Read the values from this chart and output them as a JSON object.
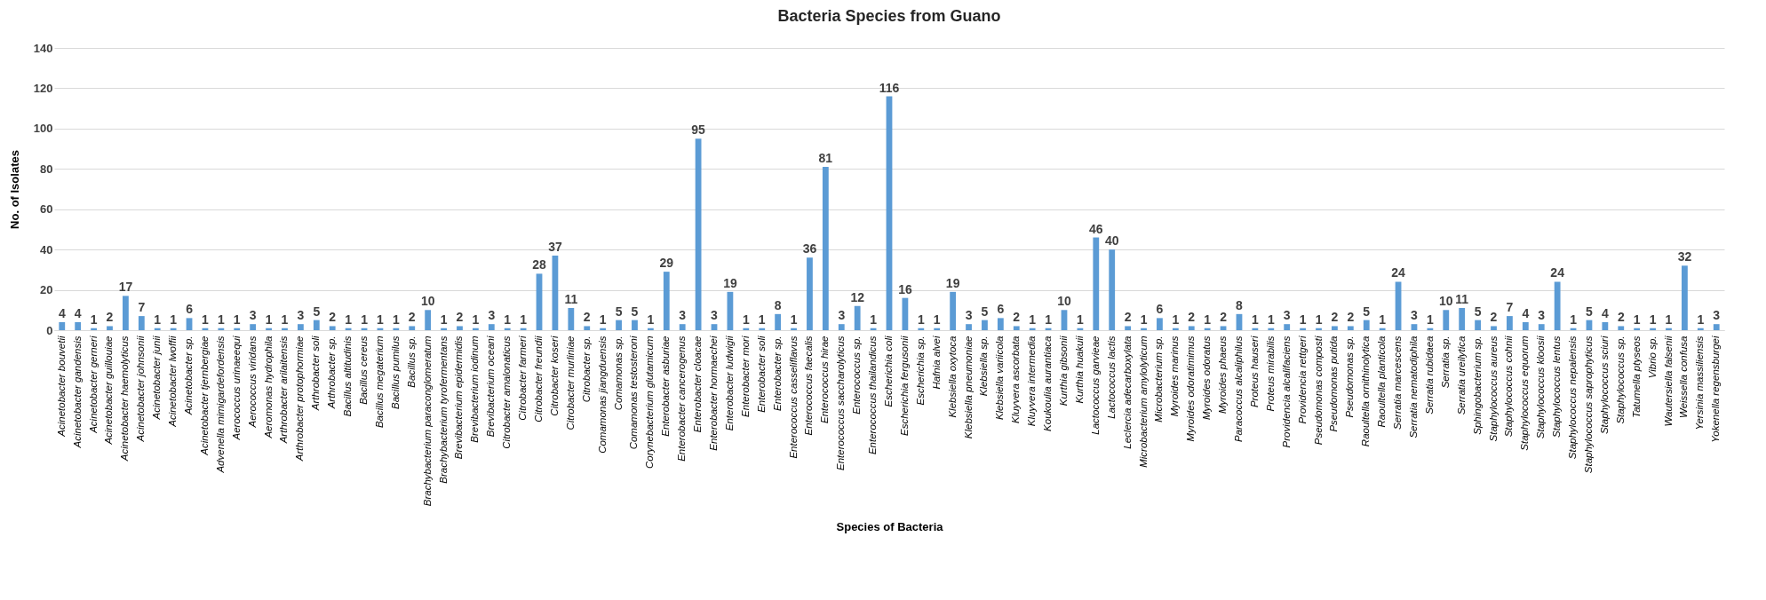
{
  "chart_data": {
    "type": "bar",
    "title": "Bacteria Species from Guano",
    "xlabel": "Species of Bacteria",
    "ylabel": "No. of Isolates",
    "categories": [
      "Acinetobacter bouvetii",
      "Acinetobacter gandensis",
      "Acinetobacter gerneri",
      "Acinetobacter guillouiae",
      "Acinetobacter haemolyticus",
      "Acinetobacter johnsonii",
      "Acinetobacter junii",
      "Acinetobacter lwoffii",
      "Acinetobacter sp.",
      "Acinetobacter tjernbergiae",
      "Advenella mimigardefordensis",
      "Aerococcus urinaeequi",
      "Aerococcus viridans",
      "Aeromonas hydrophila",
      "Arthrobacter arilaitensis",
      "Arthrobacter protophormiae",
      "Arthrobacter soli",
      "Arthrobacter sp.",
      "Bacillus altitudinis",
      "Bacillus cereus",
      "Bacillus megaterium",
      "Bacillus pumilus",
      "Bacillus sp.",
      "Brachybacterium paraconglomeratum",
      "Brachybacterium tyrofermentans",
      "Brevibacterium epidermidis",
      "Brevibacterium iodinum",
      "Brevibacterium oceani",
      "Citrobacter amalonaticus",
      "Citrobacter farmeri",
      "Citrobacter freundii",
      "Citrobacter koseri",
      "Citrobacter murliniae",
      "Citrobacter sp.",
      "Comamonas jiangduensis",
      "Comamonas sp.",
      "Comamonas testosteroni",
      "Corynebacterium glutamicum",
      "Enterobacter asburiae",
      "Enterobacter cancerogenus",
      "Enterobacter cloacae",
      "Enterobacter hormaechei",
      "Enterobacter ludwigii",
      "Enterobacter mori",
      "Enterobacter soli",
      "Enterobacter sp.",
      "Enterococcus casseliflavus",
      "Enterococcus faecalis",
      "Enterococcus hirae",
      "Enterococcus saccharolyticus",
      "Enterococcus sp.",
      "Enterococcus thailandicus",
      "Escherichia coli",
      "Escherichia fergusonii",
      "Escherichia sp.",
      "Hafnia alvei",
      "Klebsiella oxytoca",
      "Klebsiella pneumoniae",
      "Klebsiella sp.",
      "Klebsiella variicola",
      "Kluyvera ascorbata",
      "Kluyvera intermedia",
      "Koukoulia aurantiaca",
      "Kurthia gibsonii",
      "Kurthia huakuii",
      "Lactococcus garvieae",
      "Lactococcus lactis",
      "Leclercia adecarboxylata",
      "Microbacterium amylolyticum",
      "Microbacterium sp.",
      "Myroides marinus",
      "Myroides odoratimimus",
      "Myroides odoratus",
      "Myroides phaeus",
      "Paracoccus alcaliphilus",
      "Proteus hauseri",
      "Proteus mirabilis",
      "Providencia alcalifaciens",
      "Providencia rettgeri",
      "Pseudomonas composti",
      "Pseudomonas putida",
      "Pseudomonas sp.",
      "Raoultella ornithinolytica",
      "Raoultella planticola",
      "Serratia marcescens",
      "Serratia nematodiphila",
      "Serratia rubidaea",
      "Serratia sp.",
      "Serratia ureilytica",
      "Sphingobacterium sp.",
      "Staphylococcus aureus",
      "Staphylococcus cohnii",
      "Staphylococcus equorum",
      "Staphylococcus kloosii",
      "Staphylococcus lentus",
      "Staphylococcus nepalensis",
      "Staphylococcus saprophyticus",
      "Staphylococcus sciuri",
      "Staphylococcus sp.",
      "Tatumella ptyseos",
      "Vibrio sp.",
      "Wautersiella falsenii",
      "Weissella confusa",
      "Yersinia massiliensis",
      "Yokenella regensburgei"
    ],
    "values": [
      4,
      4,
      1,
      2,
      17,
      7,
      1,
      1,
      6,
      1,
      1,
      1,
      3,
      1,
      1,
      3,
      5,
      2,
      1,
      1,
      1,
      1,
      2,
      10,
      1,
      2,
      1,
      3,
      1,
      1,
      28,
      37,
      11,
      2,
      1,
      5,
      5,
      1,
      29,
      3,
      95,
      3,
      19,
      1,
      1,
      8,
      1,
      36,
      81,
      3,
      12,
      1,
      116,
      16,
      1,
      1,
      19,
      3,
      5,
      6,
      2,
      1,
      1,
      10,
      1,
      46,
      40,
      2,
      1,
      6,
      1,
      2,
      1,
      2,
      8,
      1,
      1,
      3,
      1,
      1,
      2,
      2,
      5,
      1,
      24,
      3,
      1,
      10,
      11,
      5,
      2,
      7,
      4,
      3,
      24,
      1,
      5,
      4,
      2,
      1,
      1,
      1,
      32,
      1,
      3
    ],
    "color": "#5b9bd5",
    "ylim": [
      0,
      140
    ],
    "yticks": [
      0,
      20,
      40,
      60,
      80,
      100,
      120,
      140
    ],
    "grid": "y",
    "data_labels": true
  }
}
